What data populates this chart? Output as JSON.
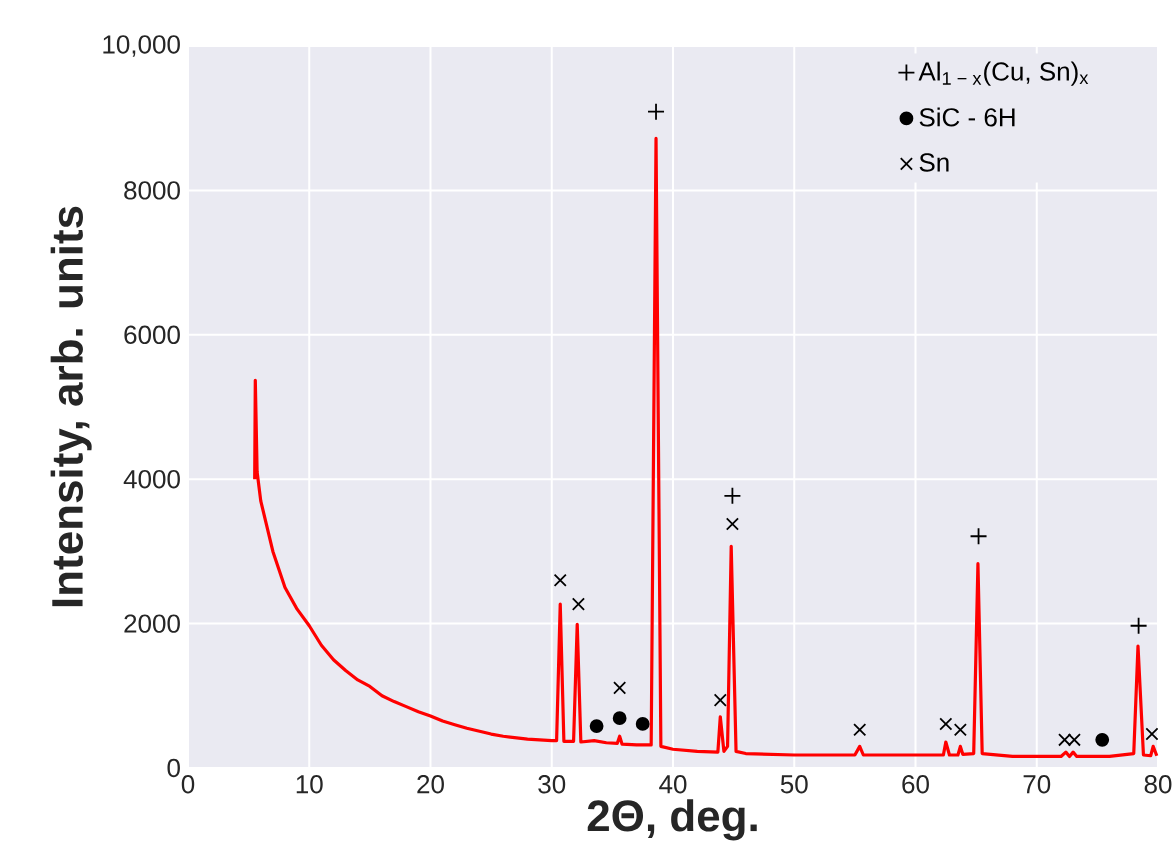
{
  "chart_data": {
    "type": "line",
    "xlabel": "2Θ, deg.",
    "ylabel": "Intensity, arb. units",
    "xlim": [
      0,
      80
    ],
    "xticks": [
      0,
      10,
      20,
      30,
      40,
      50,
      60,
      70,
      80
    ],
    "ylim": [
      0,
      10000
    ],
    "yticks": [
      0,
      2000,
      4000,
      6000,
      8000,
      {
        "value": 10000,
        "label": "10,000"
      }
    ],
    "grid": true,
    "legend": "top right",
    "series": [
      {
        "color": "#ff0000",
        "marker": "none",
        "line_style": "solid",
        "x": [
          5.5,
          5.55,
          5.7,
          6,
          7,
          8,
          9,
          10,
          11,
          12,
          13,
          14,
          15,
          16,
          17,
          18,
          19,
          20,
          21,
          22,
          23,
          24,
          25,
          26,
          27,
          28,
          29,
          30,
          30.4,
          30.7,
          31.0,
          31.8,
          32.1,
          32.4,
          33.5,
          34.5,
          35.4,
          35.6,
          35.8,
          37,
          38.2,
          38.6,
          39.0,
          40,
          42,
          43.7,
          43.9,
          44.2,
          44.5,
          44.8,
          45.2,
          46,
          50,
          55,
          55.4,
          55.7,
          60,
          62.3,
          62.5,
          62.8,
          63.5,
          63.7,
          63.9,
          64.8,
          65.15,
          65.5,
          68,
          72,
          72.4,
          72.7,
          73.0,
          73.3,
          76,
          78,
          78.35,
          78.8,
          79.4,
          79.6,
          79.9
        ],
        "values": [
          4000,
          5370,
          4100,
          3700,
          3000,
          2500,
          2200,
          1970,
          1700,
          1500,
          1350,
          1220,
          1130,
          1000,
          920,
          850,
          780,
          720,
          650,
          600,
          550,
          510,
          470,
          440,
          420,
          400,
          390,
          380,
          380,
          2270,
          370,
          370,
          1990,
          360,
          380,
          350,
          340,
          440,
          330,
          320,
          320,
          8720,
          300,
          260,
          230,
          220,
          710,
          230,
          300,
          3070,
          230,
          200,
          180,
          180,
          300,
          180,
          180,
          180,
          360,
          180,
          180,
          300,
          190,
          200,
          2830,
          200,
          160,
          160,
          220,
          160,
          220,
          160,
          160,
          200,
          1690,
          180,
          170,
          300,
          170
        ]
      },
      {
        "type": "scatter",
        "name": "Al$_{1 − x}$(Cu, Sn)$_{x}$",
        "color": "#000000",
        "marker": "plus",
        "x": [
          38.6,
          44.9,
          65.2,
          78.4
        ],
        "values": [
          9090,
          3770,
          3210,
          1970
        ]
      },
      {
        "type": "scatter",
        "name": "SiC - 6H",
        "color": "#000000",
        "marker": "circle",
        "x": [
          33.7,
          35.6,
          37.5,
          75.4
        ],
        "values": [
          580,
          690,
          610,
          390
        ]
      },
      {
        "type": "scatter",
        "name": "Sn",
        "color": "#000000",
        "marker": "cross",
        "x": [
          30.7,
          32.2,
          35.6,
          43.9,
          44.9,
          55.4,
          62.5,
          63.7,
          72.3,
          73.1,
          79.5
        ],
        "values": [
          2600,
          2270,
          1110,
          940,
          3380,
          530,
          610,
          530,
          390,
          390,
          470
        ]
      }
    ]
  }
}
